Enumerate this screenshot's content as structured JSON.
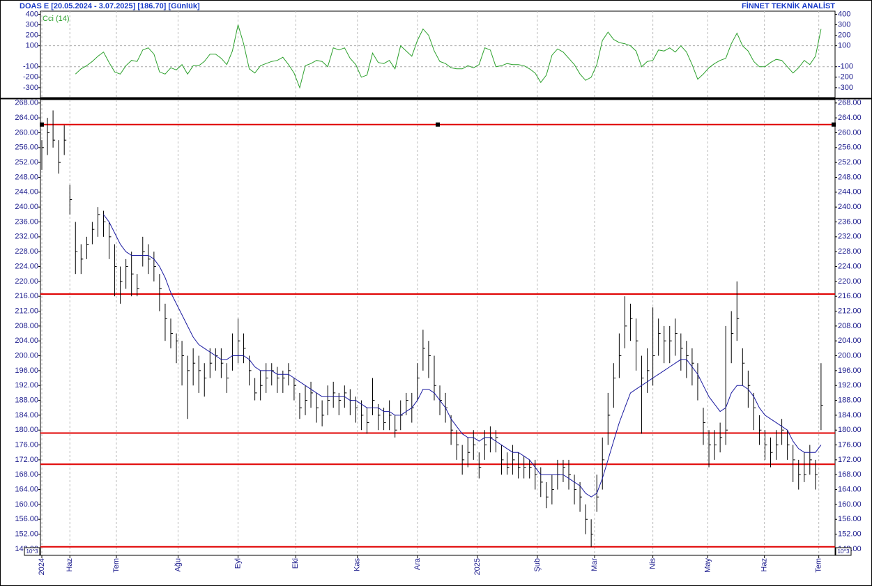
{
  "chart_data": [
    {
      "type": "line",
      "title": "Cci (14)",
      "color": "#2ca02c",
      "ylim": [
        -394,
        430
      ],
      "yticks": [
        400,
        300,
        200,
        100,
        -100,
        -200,
        -300
      ],
      "grid_at": [
        100,
        -100
      ],
      "xlim": [
        -0.25,
        141.5
      ],
      "values": [
        null,
        null,
        null,
        null,
        null,
        null,
        -170,
        -120,
        -90,
        -50,
        0,
        40,
        -60,
        -150,
        -170,
        -90,
        -40,
        -50,
        60,
        80,
        20,
        -150,
        -170,
        -110,
        -130,
        -80,
        -170,
        -90,
        -90,
        -50,
        20,
        20,
        -20,
        -80,
        50,
        300,
        120,
        -120,
        -160,
        -90,
        -70,
        -50,
        -40,
        -10,
        -80,
        -160,
        -300,
        -90,
        -70,
        -40,
        -50,
        -100,
        80,
        60,
        80,
        -20,
        -80,
        -200,
        -180,
        30,
        -60,
        -70,
        -40,
        -120,
        100,
        50,
        0,
        150,
        260,
        200,
        50,
        -50,
        -70,
        -110,
        -120,
        -120,
        -90,
        -110,
        -80,
        80,
        60,
        -100,
        -90,
        -70,
        -80,
        -80,
        -90,
        -120,
        -160,
        -250,
        -180,
        10,
        70,
        40,
        -20,
        -80,
        -170,
        -230,
        -200,
        -80,
        150,
        230,
        160,
        130,
        120,
        100,
        50,
        -100,
        -50,
        -40,
        60,
        50,
        80,
        40,
        100,
        40,
        -80,
        -220,
        -170,
        -110,
        -70,
        -40,
        -20,
        120,
        220,
        100,
        50,
        -50,
        -100,
        -100,
        -60,
        -30,
        -40,
        -100,
        -160,
        -110,
        -40,
        -80,
        0,
        260
      ]
    },
    {
      "type": "ohlc",
      "title": "DOAS  E  [20.05.2024 - 3.07.2025]  [186.70]  [Günlük]",
      "source": "FİNNET TEKNİK ANALİST",
      "color": "#000000",
      "scale_label": "10^3",
      "ylim": [
        146.3,
        268.9
      ],
      "yticks": [
        {
          "value": 268,
          "label": "268.00"
        },
        {
          "value": 264,
          "label": "264.00"
        },
        {
          "value": 260,
          "label": "260.00"
        },
        {
          "value": 256,
          "label": "256.00"
        },
        {
          "value": 252,
          "label": "252.00"
        },
        {
          "value": 248,
          "label": "248.00"
        },
        {
          "value": 244,
          "label": "244.00"
        },
        {
          "value": 240,
          "label": "240.00"
        },
        {
          "value": 236,
          "label": "236.00"
        },
        {
          "value": 232,
          "label": "232.00"
        },
        {
          "value": 228,
          "label": "228.00"
        },
        {
          "value": 224,
          "label": "224.00"
        },
        {
          "value": 220,
          "label": "220.00"
        },
        {
          "value": 216,
          "label": "216.00"
        },
        {
          "value": 212,
          "label": "212.00"
        },
        {
          "value": 208,
          "label": "208.00"
        },
        {
          "value": 204,
          "label": "204.00"
        },
        {
          "value": 200,
          "label": "200.00"
        },
        {
          "value": 196,
          "label": "196.00"
        },
        {
          "value": 192,
          "label": "192.00"
        },
        {
          "value": 188,
          "label": "188.00"
        },
        {
          "value": 184,
          "label": "184.00"
        },
        {
          "value": 180,
          "label": "180.00"
        },
        {
          "value": 176,
          "label": "176.00"
        },
        {
          "value": 172,
          "label": "172.00"
        },
        {
          "value": 168,
          "label": "168.00"
        },
        {
          "value": 164,
          "label": "164.00"
        },
        {
          "value": 160,
          "label": "160.00"
        },
        {
          "value": 156,
          "label": "156.00"
        },
        {
          "value": 152,
          "label": "152.00"
        },
        {
          "value": 148,
          "label": "148.00"
        }
      ],
      "xlim": [
        -0.25,
        141.5
      ],
      "xticks": [
        {
          "value": 0,
          "label": "2024"
        },
        {
          "value": 5,
          "label": "Haz"
        },
        {
          "value": 13.3,
          "label": "Tem"
        },
        {
          "value": 24.3,
          "label": "Ağu"
        },
        {
          "value": 35,
          "label": "Eyl"
        },
        {
          "value": 45.3,
          "label": "Eki"
        },
        {
          "value": 56.3,
          "label": "Kas"
        },
        {
          "value": 67,
          "label": "Ara"
        },
        {
          "value": 77.7,
          "label": "2025"
        },
        {
          "value": 88.4,
          "label": "Şub"
        },
        {
          "value": 98.6,
          "label": "Mar"
        },
        {
          "value": 109,
          "label": "Nis"
        },
        {
          "value": 118.8,
          "label": "May"
        },
        {
          "value": 128.9,
          "label": "Haz"
        },
        {
          "value": 138.6,
          "label": "Tem"
        }
      ],
      "hlines": {
        "color": "#e00000",
        "values": [
          262.2,
          216.6,
          179.2,
          170.8,
          148.6
        ]
      },
      "moving_average": {
        "color": "#1a1aa0",
        "values": [
          null,
          null,
          null,
          null,
          null,
          null,
          null,
          null,
          null,
          null,
          null,
          238,
          236,
          233,
          230,
          228,
          227,
          227,
          227,
          227,
          226,
          224,
          221,
          217,
          214,
          211,
          208,
          205,
          203,
          202,
          201,
          200,
          199,
          199,
          200,
          200,
          200,
          199,
          197,
          196,
          196,
          196,
          195,
          195,
          195,
          194,
          193,
          192,
          191,
          190,
          189,
          189,
          189,
          189,
          189,
          188,
          188,
          187,
          186,
          186,
          186,
          185,
          185,
          184,
          184,
          185,
          186,
          188,
          191,
          191,
          190,
          188,
          186,
          183,
          181,
          179,
          178,
          178,
          177,
          178,
          178,
          177,
          176,
          175,
          174,
          174,
          173,
          172,
          170,
          168,
          168,
          168,
          168,
          168,
          167,
          166,
          165,
          163,
          162,
          163,
          167,
          172,
          177,
          182,
          186,
          190,
          191,
          192,
          193,
          194,
          195,
          196,
          197,
          198,
          199,
          199,
          197,
          195,
          192,
          189,
          187,
          185,
          186,
          190,
          192,
          192,
          191,
          189,
          186,
          184,
          183,
          182,
          181,
          180,
          177,
          175,
          174,
          174,
          174,
          176
        ]
      },
      "close": [
        256,
        260,
        258,
        252,
        258,
        242,
        228,
        226,
        230,
        234,
        238,
        236,
        232,
        224,
        220,
        224,
        222,
        218,
        228,
        226,
        224,
        218,
        210,
        206,
        204,
        200,
        196,
        198,
        196,
        194,
        198,
        200,
        198,
        194,
        200,
        204,
        202,
        196,
        190,
        192,
        194,
        196,
        194,
        194,
        196,
        192,
        186,
        188,
        190,
        186,
        184,
        188,
        190,
        188,
        190,
        188,
        186,
        184,
        182,
        188,
        184,
        182,
        184,
        180,
        184,
        188,
        186,
        194,
        202,
        200,
        192,
        188,
        186,
        180,
        176,
        172,
        174,
        176,
        170,
        176,
        178,
        178,
        172,
        170,
        172,
        170,
        170,
        170,
        168,
        166,
        162,
        164,
        168,
        170,
        168,
        164,
        162,
        156,
        152,
        162,
        172,
        184,
        194,
        200,
        208,
        210,
        204,
        194,
        196,
        200,
        206,
        204,
        204,
        206,
        202,
        200,
        198,
        194,
        182,
        176,
        176,
        178,
        180,
        206,
        210,
        198,
        192,
        186,
        180,
        176,
        174,
        176,
        180,
        176,
        172,
        168,
        168,
        172,
        168,
        186.7
      ],
      "high": [
        258,
        264,
        266,
        258,
        262,
        246,
        236,
        230,
        232,
        236,
        240,
        239,
        236,
        230,
        224,
        226,
        228,
        222,
        232,
        230,
        228,
        222,
        214,
        210,
        206,
        204,
        200,
        202,
        200,
        198,
        202,
        202,
        202,
        198,
        206,
        210,
        206,
        200,
        194,
        196,
        198,
        198,
        197,
        196,
        198,
        194,
        190,
        192,
        193,
        190,
        188,
        192,
        193,
        190,
        192,
        191,
        189,
        188,
        186,
        194,
        187,
        186,
        188,
        184,
        188,
        190,
        190,
        198,
        207,
        204,
        200,
        192,
        190,
        184,
        180,
        176,
        178,
        180,
        174,
        180,
        181,
        180,
        176,
        174,
        176,
        174,
        173,
        172,
        172,
        170,
        166,
        168,
        172,
        172,
        172,
        168,
        166,
        160,
        156,
        168,
        178,
        190,
        198,
        206,
        216,
        214,
        210,
        200,
        202,
        213,
        210,
        208,
        208,
        210,
        206,
        204,
        202,
        198,
        186,
        180,
        180,
        182,
        208,
        212,
        220,
        202,
        196,
        190,
        184,
        180,
        178,
        180,
        183,
        180,
        176,
        172,
        174,
        176,
        172,
        198
      ],
      "low": [
        250,
        254,
        256,
        249,
        254,
        238,
        222,
        222,
        226,
        230,
        232,
        232,
        226,
        216,
        214,
        218,
        216,
        216,
        224,
        222,
        220,
        212,
        204,
        202,
        198,
        192,
        183,
        192,
        190,
        189,
        194,
        196,
        194,
        190,
        196,
        198,
        198,
        192,
        188,
        188,
        190,
        192,
        190,
        190,
        192,
        188,
        183,
        184,
        186,
        182,
        181,
        184,
        186,
        184,
        186,
        184,
        182,
        180,
        179,
        184,
        180,
        180,
        180,
        178,
        180,
        184,
        182,
        188,
        196,
        194,
        188,
        184,
        182,
        176,
        172,
        168,
        170,
        172,
        167,
        172,
        174,
        174,
        168,
        168,
        168,
        167,
        167,
        167,
        164,
        162,
        159,
        160,
        164,
        166,
        164,
        160,
        158,
        152,
        148.6,
        158,
        164,
        176,
        186,
        194,
        202,
        204,
        196,
        179,
        190,
        192,
        200,
        198,
        198,
        200,
        196,
        194,
        192,
        188,
        176,
        170,
        172,
        174,
        176,
        198,
        204,
        192,
        186,
        180,
        176,
        172,
        170,
        172,
        176,
        172,
        166,
        164,
        166,
        168,
        164,
        180
      ]
    }
  ]
}
